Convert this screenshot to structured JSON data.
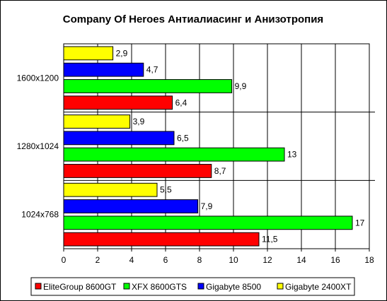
{
  "chart_data": {
    "type": "bar",
    "orientation": "horizontal",
    "title": "Company Of Heroes Антиалиасинг и Анизотропия",
    "categories": [
      "1600x1200",
      "1280x1024",
      "1024x768"
    ],
    "series": [
      {
        "name": "EliteGroup 8600GT",
        "color": "#ff0000",
        "values": [
          6.4,
          8.7,
          11.5
        ],
        "labels": [
          "6,4",
          "8,7",
          "11,5"
        ]
      },
      {
        "name": "XFX 8600GTS",
        "color": "#00ff00",
        "values": [
          9.9,
          13,
          17
        ],
        "labels": [
          "9,9",
          "13",
          "17"
        ]
      },
      {
        "name": "Gigabyte 8500",
        "color": "#0000ff",
        "values": [
          4.7,
          6.5,
          7.9
        ],
        "labels": [
          "4,7",
          "6,5",
          "7,9"
        ]
      },
      {
        "name": "Gigabyte 2400XT",
        "color": "#ffff00",
        "values": [
          2.9,
          3.9,
          5.5
        ],
        "labels": [
          "2,9",
          "3,9",
          "5,5"
        ]
      }
    ],
    "xlim": [
      0,
      18
    ],
    "x_ticks": [
      "0",
      "2",
      "4",
      "6",
      "8",
      "10",
      "12",
      "14",
      "16",
      "18"
    ],
    "grid": "vertical",
    "legend_position": "bottom"
  }
}
